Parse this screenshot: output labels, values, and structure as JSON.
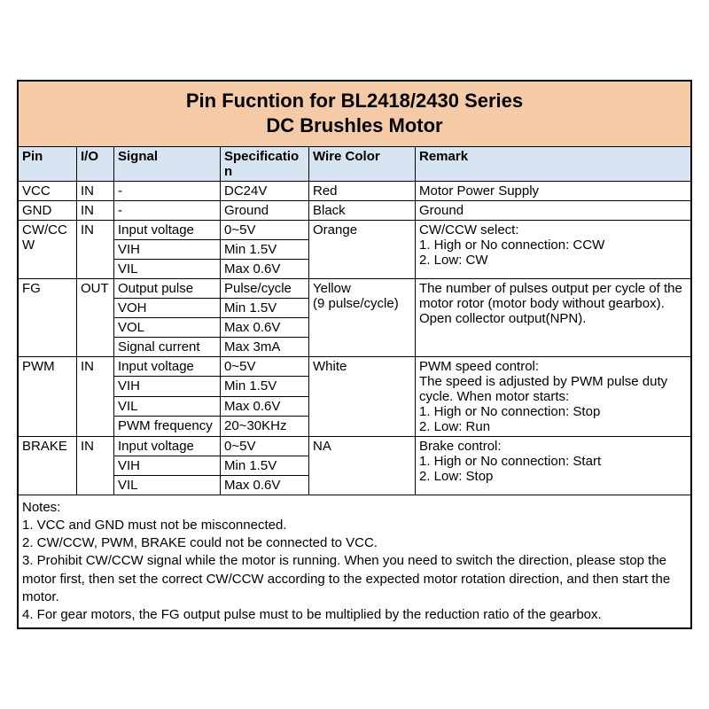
{
  "title_line1": "Pin Fucntion for BL2418/2430 Series",
  "title_line2": "DC Brushles Motor",
  "headers": {
    "pin": "Pin",
    "io": "I/O",
    "signal": "Signal",
    "spec": "Specification",
    "wire": "Wire Color",
    "remark": "Remark"
  },
  "vcc": {
    "pin": "VCC",
    "io": "IN",
    "sig": "-",
    "spec": "DC24V",
    "wire": "Red",
    "rem": "Motor Power Supply"
  },
  "gnd": {
    "pin": "GND",
    "io": "IN",
    "sig": "-",
    "spec": "Ground",
    "wire": "Black",
    "rem": "Ground"
  },
  "cw": {
    "pin": "CW/CCW",
    "io": "IN",
    "r1": {
      "sig": "Input voltage",
      "spec": "0~5V"
    },
    "r2": {
      "sig": "VIH",
      "spec": "Min 1.5V"
    },
    "r3": {
      "sig": "VIL",
      "spec": "Max 0.6V"
    },
    "wire": "Orange",
    "rem": "CW/CCW select:\n1. High or No connection: CCW\n2. Low: CW"
  },
  "fg": {
    "pin": "FG",
    "io": "OUT",
    "r1": {
      "sig": "Output pulse",
      "spec": "Pulse/cycle"
    },
    "r2": {
      "sig": "VOH",
      "spec": "Min 1.5V"
    },
    "r3": {
      "sig": "VOL",
      "spec": "Max 0.6V"
    },
    "r4": {
      "sig": "Signal current",
      "spec": "Max 3mA"
    },
    "wire": "Yellow\n(9 pulse/cycle)",
    "rem": "The number of pulses output per cycle of the motor rotor (motor body without gearbox).\nOpen collector output(NPN)."
  },
  "pwm": {
    "pin": "PWM",
    "io": "IN",
    "r1": {
      "sig": "Input voltage",
      "spec": "0~5V"
    },
    "r2": {
      "sig": "VIH",
      "spec": "Min 1.5V"
    },
    "r3": {
      "sig": "VIL",
      "spec": "Max 0.6V"
    },
    "r4": {
      "sig": "PWM frequency",
      "spec": "20~30KHz"
    },
    "wire": "White",
    "rem": "PWM speed control:\nThe speed is adjusted by PWM pulse duty cycle. When motor starts:\n1. High or No connection: Stop\n2. Low: Run"
  },
  "brake": {
    "pin": "BRAKE",
    "io": "IN",
    "r1": {
      "sig": "Input voltage",
      "spec": "0~5V"
    },
    "r2": {
      "sig": "VIH",
      "spec": "Min 1.5V"
    },
    "r3": {
      "sig": "VIL",
      "spec": "Max 0.6V"
    },
    "wire": "NA",
    "rem": "Brake control:\n1. High or No connection: Start\n2. Low: Stop"
  },
  "notes": "Notes:\n1. VCC and GND must not be misconnected.\n2. CW/CCW, PWM, BRAKE could not be connected to VCC.\n3. Prohibit CW/CCW signal while the motor is running. When you need to switch the direction, please stop the motor first, then set the correct CW/CCW according to the expected motor rotation direction, and then start the motor.\n4.  For gear motors, the FG output pulse must to be multiplied by the reduction ratio of the gearbox.",
  "colors": {
    "title_bg": "#f5cba7",
    "header_bg": "#d7e4f2",
    "border": "#000000",
    "text": "#000000"
  }
}
